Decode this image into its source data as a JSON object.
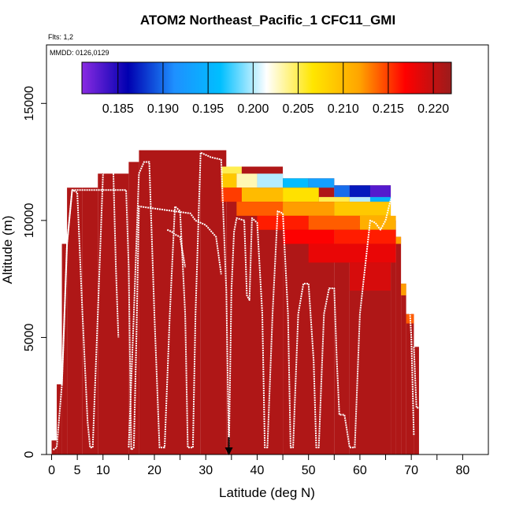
{
  "chart_data": {
    "type": "heatmap",
    "title": "ATOM2 Northeast_Pacific_1 CFC11_GMI",
    "flights_label": "Flts: 1,2",
    "dates_label": "MMDD: 0126,0129",
    "xlabel": "Latitude (deg N)",
    "ylabel": "Altitude (m)",
    "xlim": [
      -1,
      85
    ],
    "ylim": [
      0,
      17500
    ],
    "xticks": [
      0,
      5,
      10,
      20,
      30,
      40,
      50,
      60,
      70,
      80
    ],
    "xtick_labels": [
      "0",
      "5",
      "10",
      "20",
      "30",
      "40",
      "50",
      "60",
      "70",
      "80"
    ],
    "xticks_minor": [
      15,
      25,
      35,
      45,
      55,
      65,
      75
    ],
    "yticks": [
      0,
      5000,
      10000,
      15000
    ],
    "ytick_labels": [
      "0",
      "5000",
      "10000",
      "15000"
    ],
    "colorbar": {
      "min": 0.181,
      "max": 0.222,
      "ticks": [
        0.185,
        0.19,
        0.195,
        0.2,
        0.205,
        0.21,
        0.215,
        0.22
      ],
      "tick_labels": [
        "0.185",
        "0.190",
        "0.195",
        "0.200",
        "0.205",
        "0.210",
        "0.215",
        "0.220"
      ],
      "colors": [
        "#8a2be2",
        "#0000b0",
        "#1e90ff",
        "#00bfff",
        "#ffffff",
        "#ffe600",
        "#ffa500",
        "#ff0000",
        "#9b1c1c"
      ]
    },
    "marker": {
      "latitude": 34.5,
      "symbol": "down-arrow"
    },
    "base_value": 0.221,
    "columns": [
      {
        "x0": 0,
        "x1": 1,
        "top": 600
      },
      {
        "x0": 1,
        "x1": 2,
        "top": 3000
      },
      {
        "x0": 2,
        "x1": 3,
        "top": 9000
      },
      {
        "x0": 3,
        "x1": 6,
        "top": 11400
      },
      {
        "x0": 6,
        "x1": 9,
        "top": 11400
      },
      {
        "x0": 9,
        "x1": 15,
        "top": 12000
      },
      {
        "x0": 15,
        "x1": 17,
        "top": 12500
      },
      {
        "x0": 17,
        "x1": 29,
        "top": 13000
      },
      {
        "x0": 29,
        "x1": 34,
        "top": 13000
      },
      {
        "x0": 34,
        "x1": 45,
        "top": 12300
      },
      {
        "x0": 45,
        "x1": 55,
        "top": 11800
      },
      {
        "x0": 55,
        "x1": 58,
        "top": 11500
      },
      {
        "x0": 58,
        "x1": 66,
        "top": 11500
      },
      {
        "x0": 66,
        "x1": 67,
        "top": 10000
      },
      {
        "x0": 67,
        "x1": 68,
        "top": 9300
      },
      {
        "x0": 68,
        "x1": 69,
        "top": 7300
      },
      {
        "x0": 69,
        "x1": 70.5,
        "top": 6000
      },
      {
        "x0": 70.5,
        "x1": 71.5,
        "top": 4600
      }
    ],
    "patches": [
      {
        "x0": 33,
        "x1": 37,
        "y0": 12000,
        "y1": 12300,
        "v": 0.205
      },
      {
        "x0": 33,
        "x1": 36,
        "y0": 11400,
        "y1": 12000,
        "v": 0.209
      },
      {
        "x0": 36,
        "x1": 40,
        "y0": 11400,
        "y1": 12000,
        "v": 0.203
      },
      {
        "x0": 40,
        "x1": 45,
        "y0": 11400,
        "y1": 12000,
        "v": 0.2
      },
      {
        "x0": 45,
        "x1": 50,
        "y0": 11400,
        "y1": 11800,
        "v": 0.196
      },
      {
        "x0": 50,
        "x1": 55,
        "y0": 11400,
        "y1": 11800,
        "v": 0.193
      },
      {
        "x0": 55,
        "x1": 58,
        "y0": 11000,
        "y1": 11500,
        "v": 0.19
      },
      {
        "x0": 58,
        "x1": 62,
        "y0": 11000,
        "y1": 11500,
        "v": 0.187
      },
      {
        "x0": 62,
        "x1": 66,
        "y0": 11000,
        "y1": 11500,
        "v": 0.183
      },
      {
        "x0": 33,
        "x1": 37,
        "y0": 10800,
        "y1": 11400,
        "v": 0.215
      },
      {
        "x0": 37,
        "x1": 45,
        "y0": 10800,
        "y1": 11400,
        "v": 0.21
      },
      {
        "x0": 45,
        "x1": 52,
        "y0": 10800,
        "y1": 11400,
        "v": 0.207
      },
      {
        "x0": 52,
        "x1": 58,
        "y0": 10800,
        "y1": 11000,
        "v": 0.205
      },
      {
        "x0": 58,
        "x1": 62,
        "y0": 10800,
        "y1": 11000,
        "v": 0.2
      },
      {
        "x0": 62,
        "x1": 66,
        "y0": 10800,
        "y1": 11000,
        "v": 0.195
      },
      {
        "x0": 66,
        "x1": 67,
        "y0": 9300,
        "y1": 10000,
        "v": 0.182
      },
      {
        "x0": 36,
        "x1": 45,
        "y0": 10200,
        "y1": 10800,
        "v": 0.214
      },
      {
        "x0": 45,
        "x1": 55,
        "y0": 10200,
        "y1": 10800,
        "v": 0.212
      },
      {
        "x0": 55,
        "x1": 66,
        "y0": 10200,
        "y1": 10800,
        "v": 0.209
      },
      {
        "x0": 40,
        "x1": 50,
        "y0": 9600,
        "y1": 10200,
        "v": 0.216
      },
      {
        "x0": 50,
        "x1": 60,
        "y0": 9600,
        "y1": 10200,
        "v": 0.214
      },
      {
        "x0": 60,
        "x1": 67,
        "y0": 9600,
        "y1": 10200,
        "v": 0.211
      },
      {
        "x0": 45,
        "x1": 55,
        "y0": 9000,
        "y1": 9600,
        "v": 0.217
      },
      {
        "x0": 55,
        "x1": 67,
        "y0": 9000,
        "y1": 9600,
        "v": 0.216
      },
      {
        "x0": 67,
        "x1": 68,
        "y0": 9000,
        "y1": 9300,
        "v": 0.212
      },
      {
        "x0": 50,
        "x1": 67,
        "y0": 8200,
        "y1": 9000,
        "v": 0.218
      },
      {
        "x0": 68,
        "x1": 69,
        "y0": 6800,
        "y1": 7300,
        "v": 0.212
      },
      {
        "x0": 69,
        "x1": 70.5,
        "y0": 5600,
        "y1": 6000,
        "v": 0.214
      },
      {
        "x0": 58,
        "x1": 66,
        "y0": 7000,
        "y1": 8200,
        "v": 0.219
      }
    ],
    "flight_tracks": [
      [
        [
          0.3,
          200
        ],
        [
          1,
          300
        ],
        [
          2,
          3000
        ],
        [
          3,
          9000
        ],
        [
          4,
          11300
        ],
        [
          14.5,
          11300
        ],
        [
          15,
          8000
        ],
        [
          15.5,
          200
        ],
        [
          16,
          300
        ],
        [
          16.5,
          5000
        ],
        [
          17,
          10600
        ],
        [
          27,
          10300
        ],
        [
          28,
          10000
        ],
        [
          30,
          9800
        ],
        [
          32,
          9300
        ],
        [
          33,
          7700
        ]
      ],
      [
        [
          2,
          3000
        ],
        [
          3,
          9000
        ],
        [
          4,
          11300
        ],
        [
          5,
          11200
        ],
        [
          6,
          6000
        ],
        [
          7,
          1400
        ],
        [
          7.5,
          300
        ],
        [
          8,
          300
        ],
        [
          9,
          6000
        ],
        [
          10,
          12000
        ],
        [
          11,
          12200
        ],
        [
          12,
          12200
        ],
        [
          12.5,
          8000
        ],
        [
          13,
          5000
        ]
      ],
      [
        [
          15,
          300
        ],
        [
          16,
          6000
        ],
        [
          17,
          12000
        ],
        [
          18,
          12500
        ],
        [
          19,
          12500
        ],
        [
          20,
          6000
        ],
        [
          21,
          300
        ],
        [
          22,
          300
        ],
        [
          23,
          6000
        ],
        [
          24,
          10600
        ],
        [
          25,
          10400
        ],
        [
          26,
          6000
        ],
        [
          26.5,
          300
        ],
        [
          27.5,
          300
        ],
        [
          28,
          6000
        ],
        [
          29,
          12900
        ],
        [
          31,
          12700
        ],
        [
          33,
          12600
        ],
        [
          34,
          7000
        ],
        [
          34.5,
          200
        ]
      ],
      [
        [
          22.5,
          9600
        ],
        [
          23.5,
          9500
        ],
        [
          24,
          9400
        ],
        [
          25,
          9300
        ],
        [
          26,
          8000
        ]
      ],
      [
        [
          34.5,
          200
        ],
        [
          35,
          7000
        ],
        [
          35.5,
          9500
        ],
        [
          36,
          10100
        ],
        [
          37.5,
          10000
        ],
        [
          38,
          6800
        ],
        [
          38.5,
          6600
        ],
        [
          39,
          10100
        ],
        [
          40,
          9900
        ],
        [
          41,
          6000
        ],
        [
          41.5,
          300
        ],
        [
          42,
          300
        ],
        [
          43,
          6000
        ],
        [
          44,
          10400
        ],
        [
          45,
          10300
        ],
        [
          46,
          6000
        ],
        [
          46.5,
          300
        ],
        [
          47,
          300
        ],
        [
          48,
          6000
        ],
        [
          49,
          7300
        ],
        [
          50,
          7300
        ],
        [
          51,
          4000
        ],
        [
          51.5,
          300
        ],
        [
          52,
          300
        ],
        [
          53,
          6000
        ],
        [
          54,
          7100
        ],
        [
          55,
          7100
        ],
        [
          55.5,
          4000
        ],
        [
          56,
          1700
        ],
        [
          57,
          1700
        ],
        [
          58,
          300
        ],
        [
          59,
          300
        ],
        [
          60,
          6000
        ],
        [
          62,
          10000
        ],
        [
          63,
          9900
        ],
        [
          64,
          9600
        ],
        [
          65,
          10000
        ],
        [
          66,
          10900
        ],
        [
          67,
          10900
        ],
        [
          68,
          10300
        ],
        [
          69,
          9000
        ],
        [
          70,
          5000
        ],
        [
          70.5,
          800
        ]
      ],
      [
        [
          70.5,
          4600
        ],
        [
          71,
          2000
        ],
        [
          71.5,
          2000
        ]
      ]
    ]
  }
}
